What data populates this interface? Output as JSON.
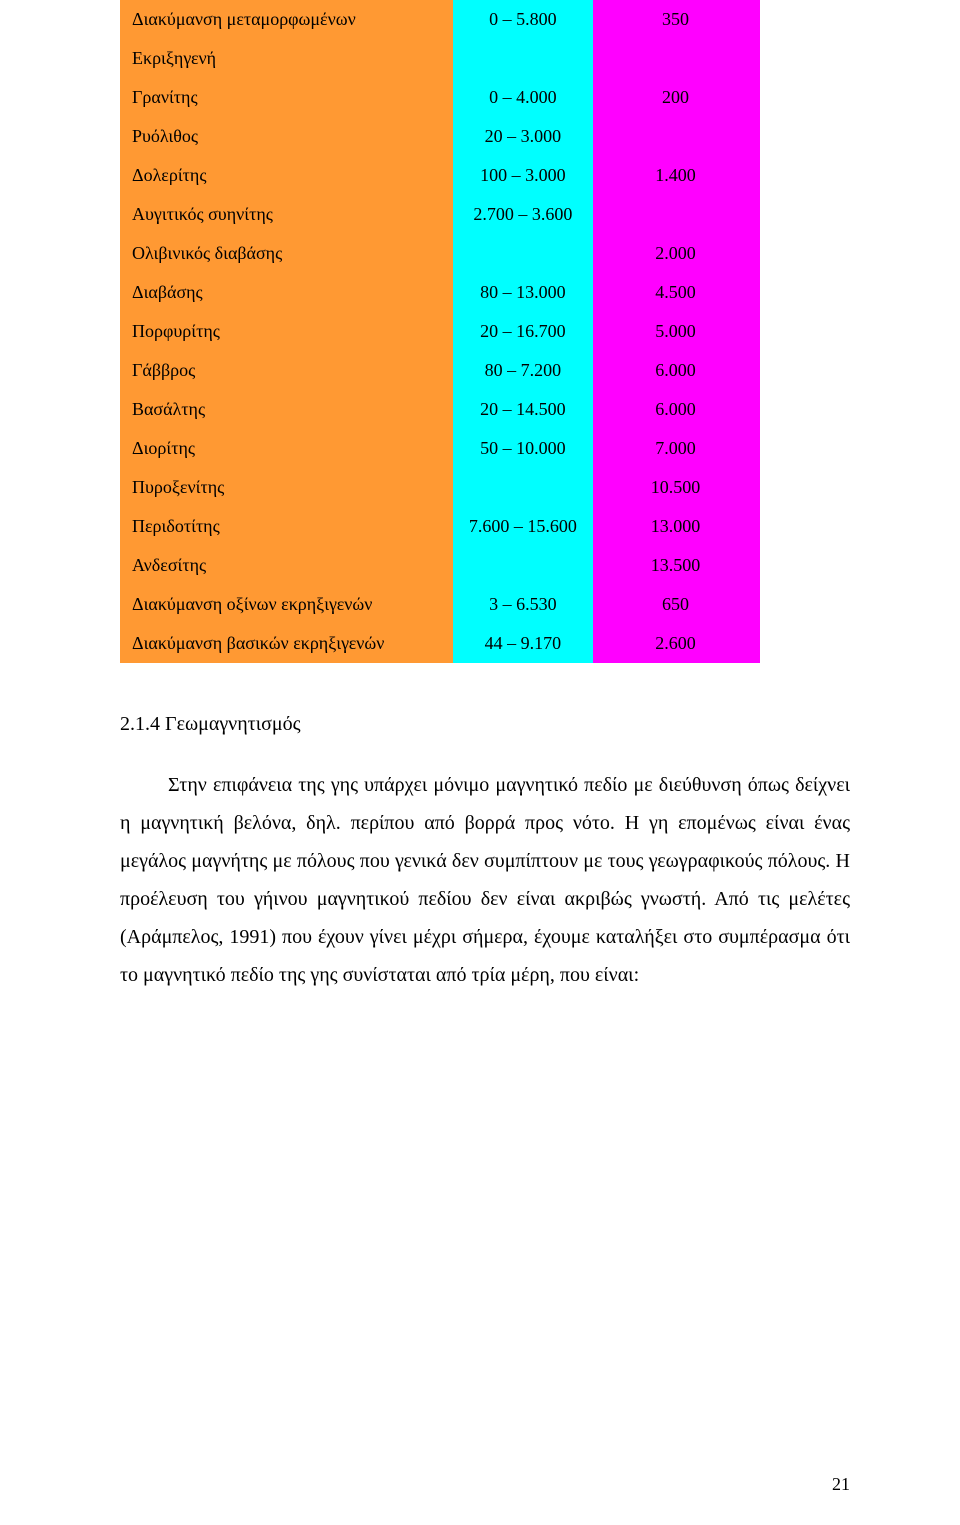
{
  "table": {
    "column_colors": {
      "c1": "#ff9933",
      "c2": "#00ffff",
      "c3": "#ff00ff"
    },
    "rows": [
      {
        "c1": "Διακύμανση μεταμορφωμένων",
        "c2": "0 – 5.800",
        "c3": "350"
      },
      {
        "c1": "Εκριξηγενή",
        "c2": "",
        "c3": ""
      },
      {
        "c1": "Γρανίτης",
        "c2": "0 – 4.000",
        "c3": "200"
      },
      {
        "c1": "Ρυόλιθος",
        "c2": "20 – 3.000",
        "c3": ""
      },
      {
        "c1": "Δολερίτης",
        "c2": "100 – 3.000",
        "c3": "1.400"
      },
      {
        "c1": "Αυγιτικός συηνίτης",
        "c2": "2.700 – 3.600",
        "c3": ""
      },
      {
        "c1": "Ολιβινικός διαβάσης",
        "c2": "",
        "c3": "2.000"
      },
      {
        "c1": "Διαβάσης",
        "c2": "80 – 13.000",
        "c3": "4.500"
      },
      {
        "c1": "Πορφυρίτης",
        "c2": "20 – 16.700",
        "c3": "5.000"
      },
      {
        "c1": "Γάββρος",
        "c2": "80 – 7.200",
        "c3": "6.000"
      },
      {
        "c1": "Βασάλτης",
        "c2": "20 – 14.500",
        "c3": "6.000"
      },
      {
        "c1": "Διορίτης",
        "c2": "50 – 10.000",
        "c3": "7.000"
      },
      {
        "c1": "Πυροξενίτης",
        "c2": "",
        "c3": "10.500"
      },
      {
        "c1": "Περιδοτίτης",
        "c2": "7.600 – 15.600",
        "c3": "13.000"
      },
      {
        "c1": "Ανδεσίτης",
        "c2": "",
        "c3": "13.500"
      },
      {
        "c1": "Διακύμανση οξίνων εκρηξιγενών",
        "c2": "3 – 6.530",
        "c3": "650"
      },
      {
        "c1": "Διακύμανση βασικών εκρηξιγενών",
        "c2": "44 – 9.170",
        "c3": "2.600"
      }
    ]
  },
  "section_heading": "2.1.4 Γεωμαγνητισμός",
  "paragraph": "Στην επιφάνεια της γης υπάρχει μόνιμο μαγνητικό πεδίο με διεύθυνση όπως δείχνει η μαγνητική βελόνα, δηλ. περίπου από βορρά προς νότο. Η γη επομένως είναι ένας μεγάλος μαγνήτης με πόλους που γενικά δεν συμπίπτουν με τους γεωγραφικούς πόλους. Η προέλευση του γήινου μαγνητικού πεδίου δεν είναι ακριβώς γνωστή. Από τις μελέτες (Αράμπελος, 1991) που έχουν γίνει μέχρι σήμερα, έχουμε καταλήξει στο συμπέρασμα ότι το μαγνητικό πεδίο της γης συνίσταται από τρία μέρη, που είναι:",
  "page_number": "21"
}
